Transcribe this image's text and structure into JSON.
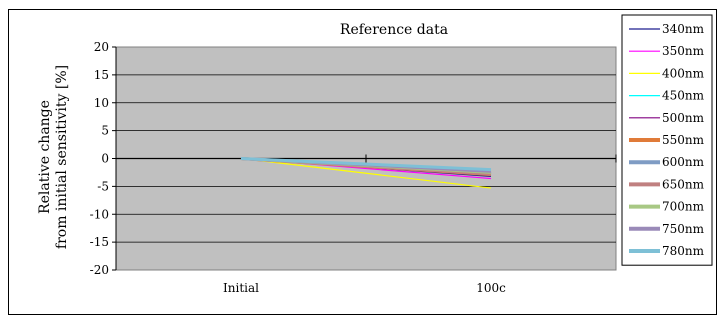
{
  "chart_data": {
    "type": "line",
    "title": "Reference data",
    "ylabel_lines": [
      "Relative change",
      "from initial sensitivity [%]"
    ],
    "xlabel": "",
    "categories": [
      "Initial",
      "100c"
    ],
    "ylim": [
      -20,
      20
    ],
    "yticks": [
      20,
      15,
      10,
      5,
      0,
      -5,
      -10,
      -15,
      -20
    ],
    "grid": "horizontal",
    "legend_position": "right",
    "plot_background": "#c0c0c0",
    "series": [
      {
        "name": "340nm",
        "color": "#1f1f8f",
        "weight": "thin",
        "values": [
          0,
          -3.2
        ]
      },
      {
        "name": "350nm",
        "color": "#ff00ff",
        "weight": "thin",
        "values": [
          0,
          -3.6
        ]
      },
      {
        "name": "400nm",
        "color": "#ffff00",
        "weight": "thin",
        "values": [
          0,
          -5.3
        ]
      },
      {
        "name": "450nm",
        "color": "#00ffff",
        "weight": "thin",
        "values": [
          0,
          -2.6
        ]
      },
      {
        "name": "500nm",
        "color": "#800080",
        "weight": "thin",
        "values": [
          0,
          -3.0
        ]
      },
      {
        "name": "550nm",
        "color": "#e07b39",
        "weight": "thick",
        "values": [
          0,
          -2.9
        ]
      },
      {
        "name": "600nm",
        "color": "#7f9cc4",
        "weight": "thick",
        "values": [
          0,
          -2.7
        ]
      },
      {
        "name": "650nm",
        "color": "#c08080",
        "weight": "thick",
        "values": [
          0,
          -2.8
        ]
      },
      {
        "name": "700nm",
        "color": "#a8c884",
        "weight": "thick",
        "values": [
          0,
          -2.5
        ]
      },
      {
        "name": "750nm",
        "color": "#9a8ab8",
        "weight": "thick",
        "values": [
          0,
          -2.3
        ]
      },
      {
        "name": "780nm",
        "color": "#7ec0d6",
        "weight": "thick",
        "values": [
          0,
          -2.0
        ]
      }
    ]
  }
}
